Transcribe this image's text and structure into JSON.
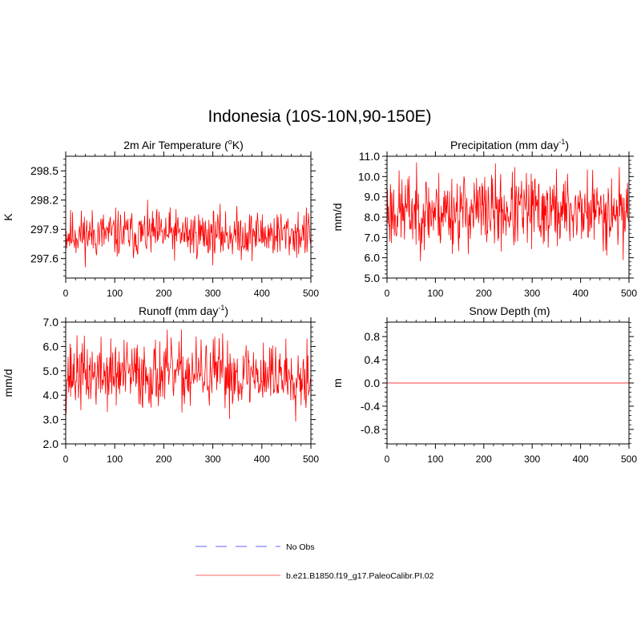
{
  "figure": {
    "title": "Indonesia (10S-10N,90-150E)"
  },
  "chart_data": [
    {
      "type": "line",
      "title_main": "2m Air Temperature (",
      "title_sup": "o",
      "title_tail": "K)",
      "ylabel": "K",
      "xlabel": "",
      "xlim": [
        0,
        500
      ],
      "ylim": [
        297.4,
        298.65
      ],
      "xticks": [
        0,
        100,
        200,
        300,
        400,
        500
      ],
      "xtick_labels": [
        "0",
        "100",
        "200",
        "300",
        "400",
        "500"
      ],
      "yticks": [
        297.6,
        297.9,
        298.2,
        298.5
      ],
      "ytick_labels": [
        "297.6",
        "297.9",
        "298.2",
        "298.5"
      ],
      "yminor_step": 0.06,
      "xminor_step": 20,
      "series": [
        {
          "name": "b.e21.B1850.f19_g17.PaleoCalibr.PI.02",
          "color": "#ff0000",
          "mean": 297.85,
          "spread": 0.13,
          "min": 297.48,
          "max": 298.42,
          "seed": 11
        }
      ]
    },
    {
      "type": "line",
      "title_main": "Precipitation (mm day",
      "title_sup": "-1",
      "title_tail": ")",
      "ylabel": "mm/d",
      "xlabel": "",
      "xlim": [
        0,
        500
      ],
      "ylim": [
        5.0,
        11.0
      ],
      "xticks": [
        0,
        100,
        200,
        300,
        400,
        500
      ],
      "xtick_labels": [
        "0",
        "100",
        "200",
        "300",
        "400",
        "500"
      ],
      "yticks": [
        5.0,
        6.0,
        7.0,
        8.0,
        9.0,
        10.0,
        11.0
      ],
      "ytick_labels": [
        "5.0",
        "6.0",
        "7.0",
        "8.0",
        "9.0",
        "10.0",
        "11.0"
      ],
      "yminor_step": 0.2,
      "xminor_step": 20,
      "series": [
        {
          "name": "b.e21.B1850.f19_g17.PaleoCalibr.PI.02",
          "color": "#ff0000",
          "mean": 8.3,
          "spread": 1.0,
          "min": 5.7,
          "max": 10.7,
          "seed": 23
        }
      ]
    },
    {
      "type": "line",
      "title_main": "Runoff (mm day",
      "title_sup": "-1",
      "title_tail": ")",
      "ylabel": "mm/d",
      "xlabel": "",
      "xlim": [
        0,
        500
      ],
      "ylim": [
        2.0,
        7.0
      ],
      "xticks": [
        0,
        100,
        200,
        300,
        400,
        500
      ],
      "xtick_labels": [
        "0",
        "100",
        "200",
        "300",
        "400",
        "500"
      ],
      "yticks": [
        2.0,
        3.0,
        4.0,
        5.0,
        6.0,
        7.0
      ],
      "ytick_labels": [
        "2.0",
        "3.0",
        "4.0",
        "5.0",
        "6.0",
        "7.0"
      ],
      "yminor_step": 0.2,
      "xminor_step": 20,
      "series": [
        {
          "name": "b.e21.B1850.f19_g17.PaleoCalibr.PI.02",
          "color": "#ff0000",
          "mean": 4.85,
          "spread": 0.75,
          "min": 2.75,
          "max": 6.8,
          "seed": 37
        }
      ]
    },
    {
      "type": "line",
      "title_main": "Snow Depth (m)",
      "title_sup": "",
      "title_tail": "",
      "ylabel": "m",
      "xlabel": "",
      "xlim": [
        0,
        500
      ],
      "ylim": [
        -1.05,
        1.05
      ],
      "xticks": [
        0,
        100,
        200,
        300,
        400,
        500
      ],
      "xtick_labels": [
        "0",
        "100",
        "200",
        "300",
        "400",
        "500"
      ],
      "yticks": [
        -0.8,
        -0.4,
        0.0,
        0.4,
        0.8
      ],
      "ytick_labels": [
        "-0.8",
        "-0.4",
        "0.0",
        "0.4",
        "0.8"
      ],
      "yminor_step": 0.08,
      "xminor_step": 20,
      "series": [
        {
          "name": "b.e21.B1850.f19_g17.PaleoCalibr.PI.02",
          "color": "#ff8080",
          "constant": 0.0
        }
      ]
    }
  ],
  "legend": {
    "placement": "bottom-center",
    "items": [
      {
        "label": "No Obs",
        "color": "#9999ff",
        "style": "dashed"
      },
      {
        "label": "b.e21.B1850.f19_g17.PaleoCalibr.PI.02",
        "color": "#ff9999",
        "style": "solid"
      }
    ]
  }
}
